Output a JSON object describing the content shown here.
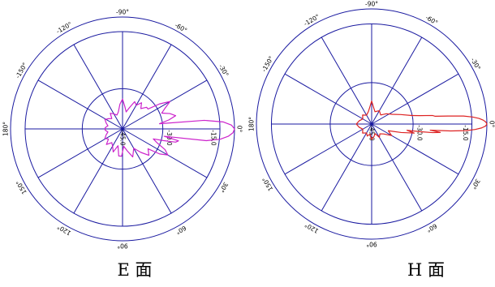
{
  "chart_data": [
    {
      "type": "polar",
      "title": "",
      "caption": "E 面",
      "rlim_db": [
        -45,
        0
      ],
      "rings_db": [
        -45,
        -30,
        -15,
        0
      ],
      "ring_labels": [
        "-15.0",
        "-30.0",
        "-45.0"
      ],
      "angle_labels": [
        "0°",
        "30°",
        "60°",
        "90°",
        "120°",
        "150°",
        "180°",
        "-150°",
        "-120°",
        "-90°",
        "-60°",
        "-30°"
      ],
      "radial_lines_every_deg": 30,
      "grid_color": "#1a1aa0",
      "series": [
        {
          "color": "#cc22cc",
          "points": [
            [
              0,
              0
            ],
            [
              2,
              -0.6
            ],
            [
              4,
              -2.4
            ],
            [
              6,
              -5.5
            ],
            [
              8,
              -11
            ],
            [
              10,
              -28
            ],
            [
              12,
              -22
            ],
            [
              14,
              -23
            ],
            [
              16,
              -28
            ],
            [
              18,
              -32
            ],
            [
              22,
              -30
            ],
            [
              26,
              -26
            ],
            [
              30,
              -24
            ],
            [
              34,
              -27
            ],
            [
              38,
              -32
            ],
            [
              45,
              -30
            ],
            [
              52,
              -33
            ],
            [
              60,
              -36
            ],
            [
              70,
              -33
            ],
            [
              78,
              -36
            ],
            [
              86,
              -38
            ],
            [
              92,
              -34
            ],
            [
              98,
              -34
            ],
            [
              105,
              -38
            ],
            [
              112,
              -35
            ],
            [
              120,
              -37
            ],
            [
              128,
              -38
            ],
            [
              136,
              -36
            ],
            [
              144,
              -38
            ],
            [
              152,
              -37
            ],
            [
              160,
              -38
            ],
            [
              168,
              -39
            ],
            [
              176,
              -38
            ],
            [
              180,
              -38
            ],
            [
              184,
              -38
            ],
            [
              192,
              -39
            ],
            [
              200,
              -38
            ],
            [
              208,
              -37
            ],
            [
              216,
              -38
            ],
            [
              224,
              -39
            ],
            [
              232,
              -37
            ],
            [
              240,
              -38
            ],
            [
              248,
              -39
            ],
            [
              256,
              -38
            ],
            [
              264,
              -35
            ],
            [
              270,
              -33
            ],
            [
              276,
              -36
            ],
            [
              282,
              -38
            ],
            [
              288,
              -36
            ],
            [
              294,
              -33
            ],
            [
              300,
              -34
            ],
            [
              306,
              -32
            ],
            [
              312,
              -34
            ],
            [
              318,
              -32
            ],
            [
              322,
              -32
            ],
            [
              326,
              -27
            ],
            [
              330,
              -23
            ],
            [
              334,
              -26
            ],
            [
              338,
              -28
            ],
            [
              342,
              -25
            ],
            [
              346,
              -23
            ],
            [
              349,
              -26
            ],
            [
              352,
              -30
            ],
            [
              354,
              -12
            ],
            [
              356,
              -4.5
            ],
            [
              358,
              -1.2
            ]
          ]
        }
      ]
    },
    {
      "type": "polar",
      "title": "",
      "caption": "H 面",
      "rlim_db": [
        -45,
        0
      ],
      "rings_db": [
        -45,
        -30,
        -15,
        0
      ],
      "ring_labels": [
        "-15.0",
        "-30.0",
        "-45.0"
      ],
      "angle_labels": [
        "0°",
        "30°",
        "60°",
        "90°",
        "120°",
        "150°",
        "180°",
        "-150°",
        "-120°",
        "-90°",
        "-60°",
        "-30°"
      ],
      "radial_lines_every_deg": 30,
      "grid_color": "#1a1aa0",
      "series": [
        {
          "color": "#dd2222",
          "points": [
            [
              0,
              0
            ],
            [
              1,
              -0.5
            ],
            [
              2,
              -2
            ],
            [
              3,
              -4.5
            ],
            [
              4,
              -8
            ],
            [
              5,
              -14
            ],
            [
              6,
              -22
            ],
            [
              7,
              -18
            ],
            [
              8,
              -21
            ],
            [
              9,
              -26
            ],
            [
              10,
              -31
            ],
            [
              12,
              -28
            ],
            [
              16,
              -33
            ],
            [
              22,
              -38
            ],
            [
              30,
              -36
            ],
            [
              40,
              -39
            ],
            [
              50,
              -40
            ],
            [
              60,
              -39
            ],
            [
              70,
              -41
            ],
            [
              80,
              -40
            ],
            [
              90,
              -39
            ],
            [
              100,
              -41
            ],
            [
              110,
              -40
            ],
            [
              120,
              -41
            ],
            [
              135,
              -40
            ],
            [
              150,
              -41
            ],
            [
              165,
              -40
            ],
            [
              180,
              -39
            ],
            [
              195,
              -40
            ],
            [
              210,
              -41
            ],
            [
              225,
              -40
            ],
            [
              240,
              -41
            ],
            [
              255,
              -40
            ],
            [
              265,
              -38
            ],
            [
              270,
              -36
            ],
            [
              275,
              -38
            ],
            [
              285,
              -40
            ],
            [
              300,
              -39
            ],
            [
              315,
              -40
            ],
            [
              325,
              -38
            ],
            [
              335,
              -36
            ],
            [
              342,
              -33
            ],
            [
              348,
              -29
            ],
            [
              350,
              -26
            ],
            [
              352,
              -21
            ],
            [
              353,
              -20
            ],
            [
              354,
              -15
            ],
            [
              355,
              -9
            ],
            [
              356,
              -5.5
            ],
            [
              357,
              -3
            ],
            [
              358,
              -1.4
            ],
            [
              359,
              -0.4
            ]
          ]
        }
      ]
    }
  ]
}
